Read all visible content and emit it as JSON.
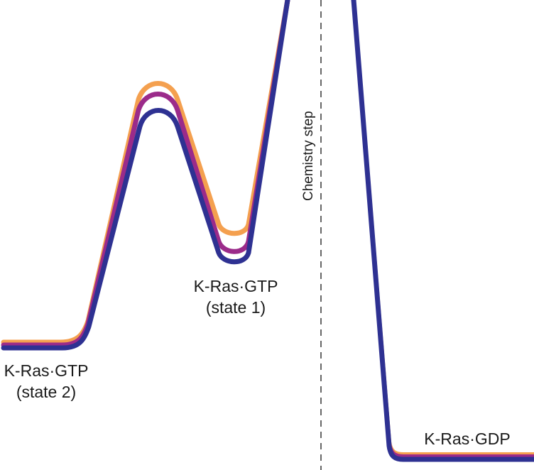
{
  "diagram": {
    "states": {
      "state2": {
        "name": "K-Ras·GTP",
        "sub": "(state 2)"
      },
      "state1": {
        "name": "K-Ras·GTP",
        "sub": "(state 1)"
      },
      "product": {
        "name": "K-Ras·GDP"
      }
    },
    "divider_label": "Chemistry step",
    "curves": [
      {
        "name": "orange-curve",
        "color": "#f4a04f"
      },
      {
        "name": "purple-curve",
        "color": "#9b2b8a"
      },
      {
        "name": "blue-curve",
        "color": "#2e3192"
      }
    ],
    "divider_color": "#666666"
  }
}
